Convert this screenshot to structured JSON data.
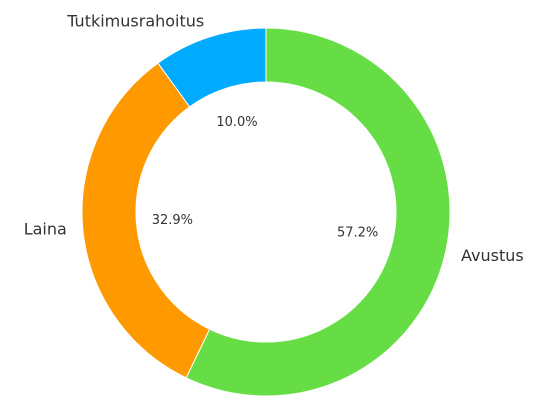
{
  "chart_data": {
    "type": "donut",
    "categories": [
      "Avustus",
      "Laina",
      "Tutkimusrahoitus"
    ],
    "values": [
      57.2,
      32.9,
      10.0
    ],
    "value_labels": [
      "57.2%",
      "32.9%",
      "10.0%"
    ],
    "colors": [
      "#66dd44",
      "#ff9900",
      "#00aaff"
    ]
  }
}
